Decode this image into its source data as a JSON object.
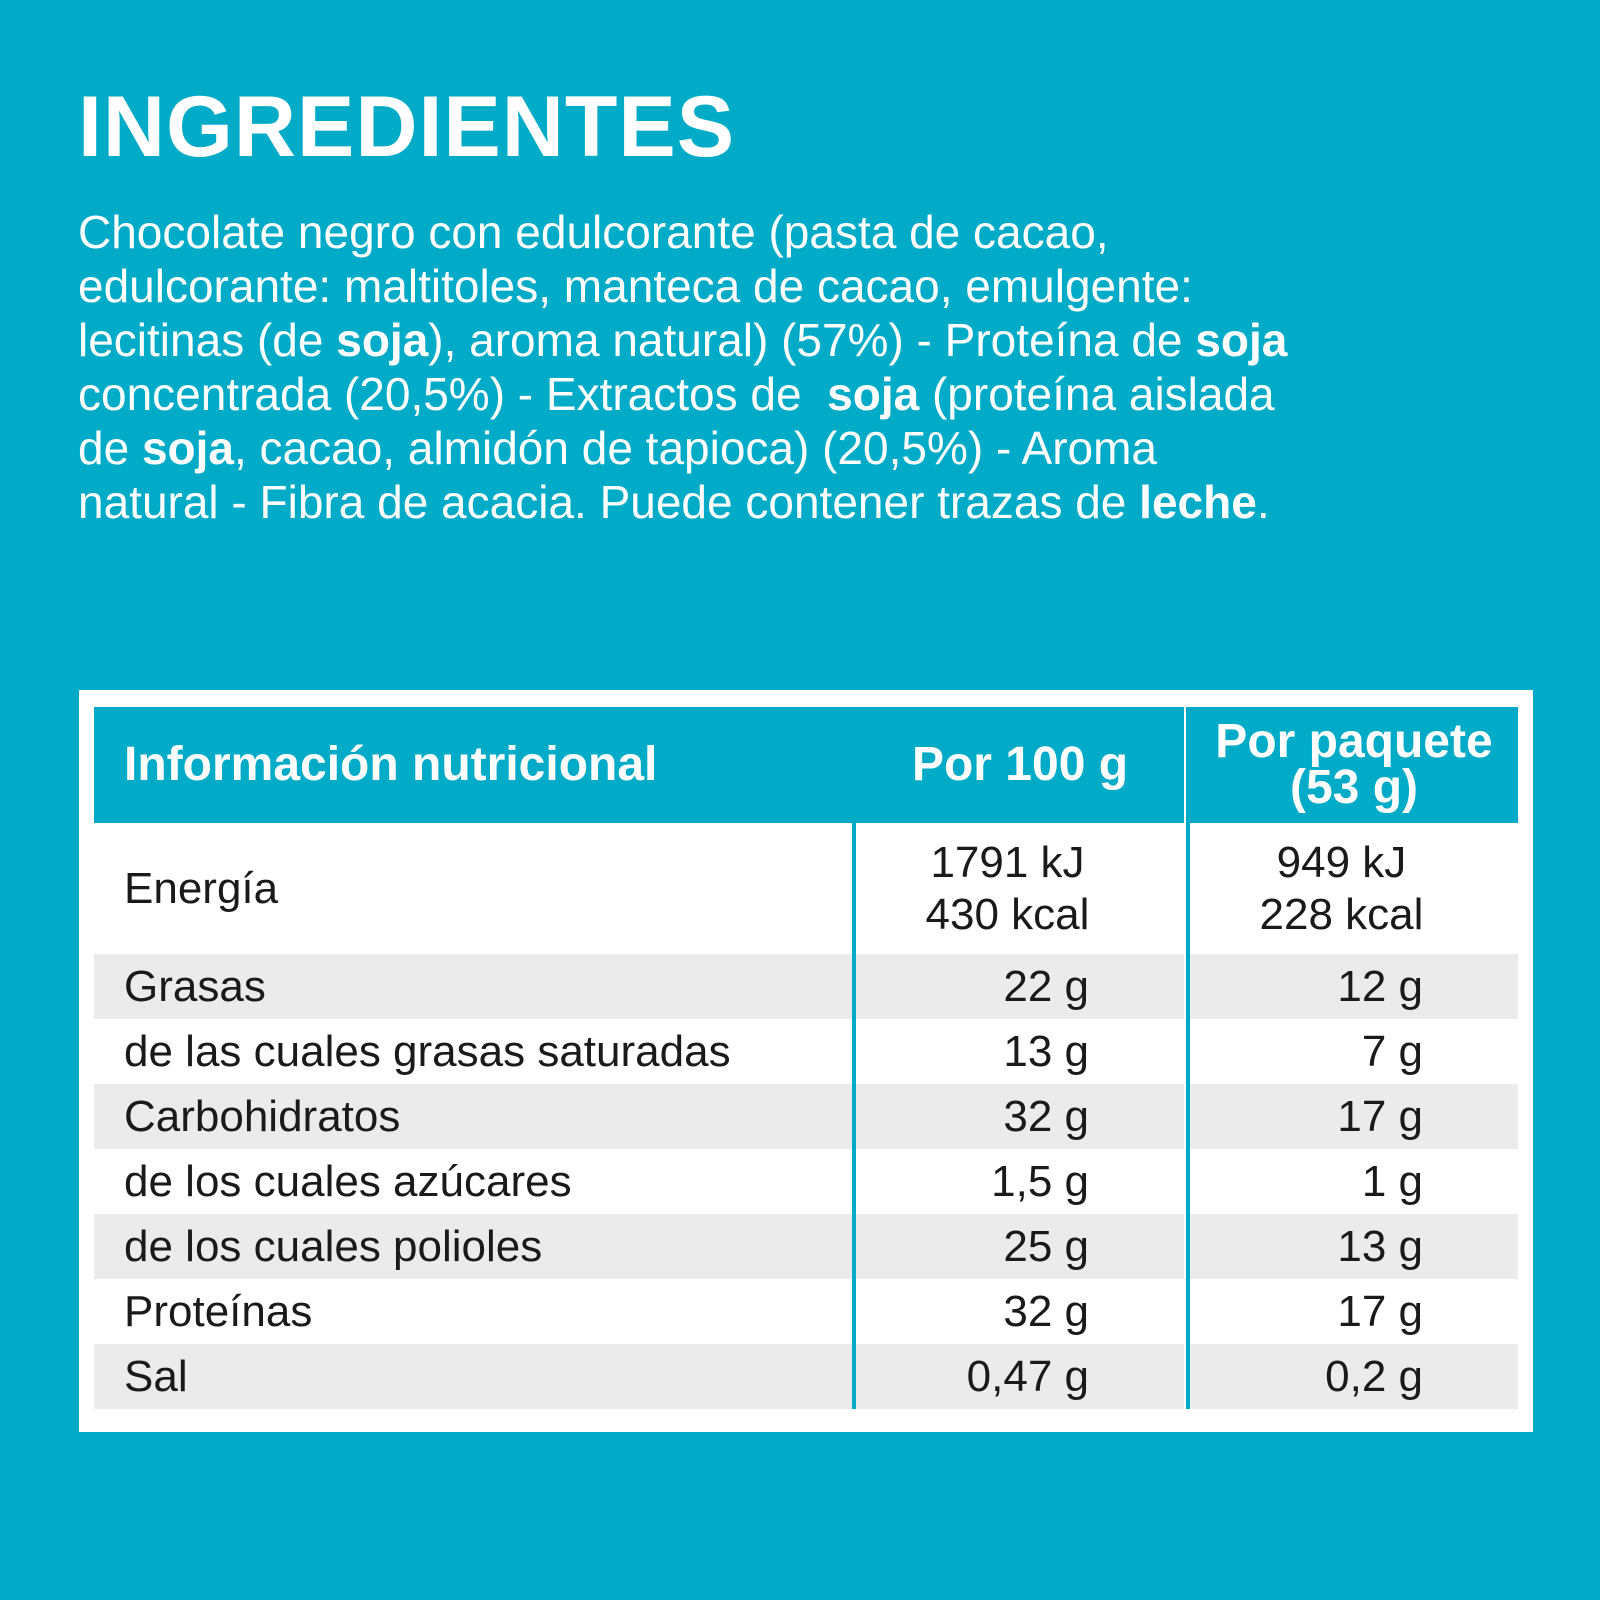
{
  "title": "INGREDIENTES",
  "ingredients": {
    "lines": [
      [
        {
          "text": "Chocolate negro con edulcorante (pasta de cacao,"
        }
      ],
      [
        {
          "text": "edulcorante: maltitoles, manteca de cacao, emulgente:"
        }
      ],
      [
        {
          "text": "lecitinas (de "
        },
        {
          "text": "soja",
          "bold": true
        },
        {
          "text": "), aroma natural) (57%) - Proteína de "
        },
        {
          "text": "soja",
          "bold": true
        }
      ],
      [
        {
          "text": "concentrada (20,5%) - Extractos de  "
        },
        {
          "text": "soja",
          "bold": true
        },
        {
          "text": " (proteína aislada"
        }
      ],
      [
        {
          "text": "de "
        },
        {
          "text": "soja",
          "bold": true
        },
        {
          "text": ", cacao, almidón de tapioca) (20,5%) - Aroma"
        }
      ],
      [
        {
          "text": "natural - Fibra de acacia. Puede contener trazas de "
        },
        {
          "text": "leche",
          "bold": true
        },
        {
          "text": "."
        }
      ]
    ]
  },
  "table": {
    "header": [
      {
        "lines": [
          "Información nutricional"
        ]
      },
      {
        "lines": [
          "Por 100 g"
        ]
      },
      {
        "lines": [
          "Por paquete",
          "(53 g)"
        ]
      }
    ],
    "rows": [
      {
        "cells": [
          [
            "Energía"
          ],
          [
            "1791 kJ",
            "430 kcal"
          ],
          [
            "949 kJ",
            "228 kcal"
          ]
        ]
      },
      {
        "cells": [
          [
            "Grasas"
          ],
          [
            "22 g"
          ],
          [
            "12 g"
          ]
        ]
      },
      {
        "cells": [
          [
            "de las cuales grasas saturadas"
          ],
          [
            "13 g"
          ],
          [
            "7 g"
          ]
        ]
      },
      {
        "cells": [
          [
            "Carbohidratos"
          ],
          [
            "32 g"
          ],
          [
            "17 g"
          ]
        ]
      },
      {
        "cells": [
          [
            "de los cuales azúcares"
          ],
          [
            "1,5 g"
          ],
          [
            "1 g"
          ]
        ]
      },
      {
        "cells": [
          [
            "de los cuales polioles"
          ],
          [
            "25 g"
          ],
          [
            "13 g"
          ]
        ]
      },
      {
        "cells": [
          [
            "Proteínas"
          ],
          [
            "32 g"
          ],
          [
            "17 g"
          ]
        ]
      },
      {
        "cells": [
          [
            "Sal"
          ],
          [
            "0,47 g"
          ],
          [
            "0,2 g"
          ]
        ]
      }
    ]
  }
}
